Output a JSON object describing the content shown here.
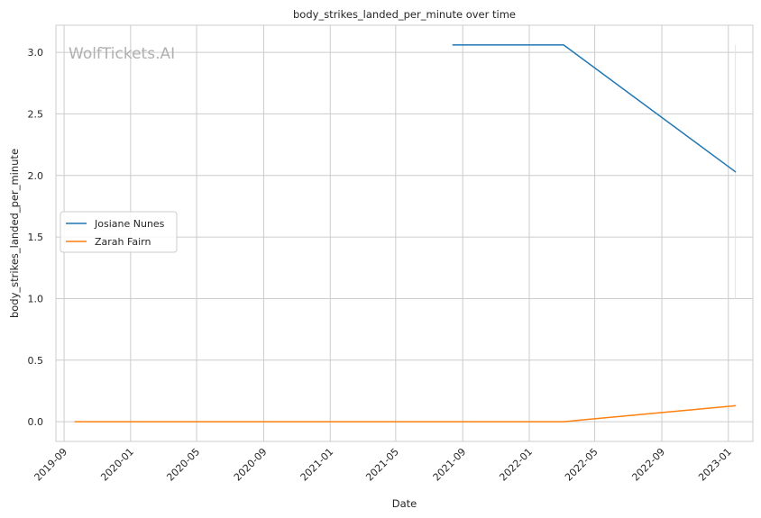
{
  "chart_data": {
    "type": "line",
    "title": "body_strikes_landed_per_minute over time",
    "xlabel": "Date",
    "ylabel": "body_strikes_landed_per_minute",
    "x_ticks": [
      "2019-09",
      "2020-01",
      "2020-05",
      "2020-09",
      "2021-01",
      "2021-05",
      "2021-09",
      "2022-01",
      "2022-05",
      "2022-09",
      "2023-01"
    ],
    "y_ticks": [
      "0.0",
      "0.5",
      "1.0",
      "1.5",
      "2.0",
      "2.5",
      "3.0"
    ],
    "xlim": [
      "2019-08-17",
      "2023-02-15"
    ],
    "ylim": [
      -0.16,
      3.22
    ],
    "grid": true,
    "legend_position": "center-left",
    "watermark": "WolfTickets.AI",
    "series": [
      {
        "name": "Josiane Nunes",
        "color": "#1f77b4",
        "points": [
          {
            "x": "2021-08-14",
            "y": 3.06
          },
          {
            "x": "2022-03-05",
            "y": 3.06
          },
          {
            "x": "2023-01-14",
            "y": 2.03
          }
        ]
      },
      {
        "name": "Zarah Fairn",
        "color": "#ff7f0e",
        "points": [
          {
            "x": "2019-09-21",
            "y": 0.0
          },
          {
            "x": "2022-03-05",
            "y": 0.0
          },
          {
            "x": "2023-01-14",
            "y": 0.13
          }
        ]
      }
    ],
    "annotation_line": {
      "x": "2023-01-14",
      "y_range": [
        1.0,
        3.06
      ],
      "color": "#d6e6f0"
    }
  }
}
